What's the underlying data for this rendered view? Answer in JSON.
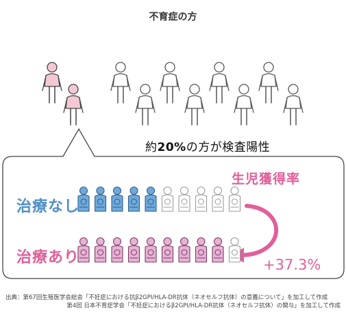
{
  "title": "不育症の方",
  "positive_text": {
    "prefix": "約",
    "percent": "20%",
    "suffix": "の方が検査陽性"
  },
  "rate_title": "生児獲得率",
  "rows": [
    {
      "label": "治療なし",
      "filled": 5,
      "total": 10,
      "color": "#6ea9d9",
      "stroke": "#2f5f8f"
    },
    {
      "label": "治療あり",
      "filled": 9,
      "total": 10,
      "color": "#e6b3d4",
      "stroke": "#7a3a63"
    }
  ],
  "increase": "+37.3%",
  "source": {
    "line1": "出典：第67回生殖医学会総会「不妊症における抗β2GPI/HLA-DR抗体（ネオセルフ抗体）の意義について」を加工して作成",
    "line2": "第4回 日本不育症学会「不妊症におけるβ2GPI/HLA-DR抗体（ネオセルフ抗体）の関与」を加工して作成"
  },
  "colors": {
    "pink_accent": "#e0609a",
    "blue_accent": "#4f8fc9",
    "figure_highlight": "#f4c9d3"
  }
}
